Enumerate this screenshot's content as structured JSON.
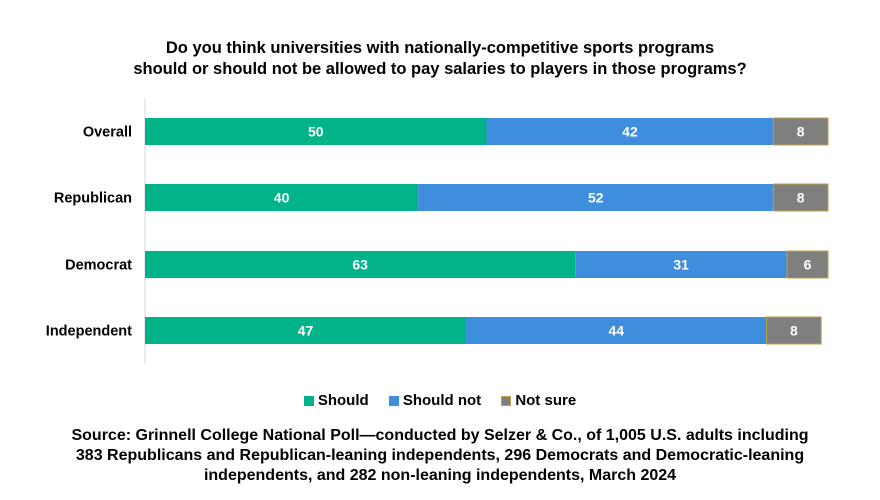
{
  "chart_data": {
    "type": "bar",
    "orientation": "horizontal-stacked",
    "title": "Do you think universities with nationally-competitive sports programs should or should not be allowed to pay salaries to players in those programs?",
    "title_lines": [
      "Do you think universities with nationally-competitive sports programs",
      "should or should not be allowed to pay salaries to players in those programs?"
    ],
    "categories": [
      "Overall",
      "Republican",
      "Democrat",
      "Independent"
    ],
    "series": [
      {
        "name": "Should",
        "values": [
          50,
          40,
          63,
          47
        ],
        "color": "#00b388"
      },
      {
        "name": "Should not",
        "values": [
          42,
          52,
          31,
          44
        ],
        "color": "#3f8ede"
      },
      {
        "name": "Not sure",
        "values": [
          8,
          8,
          6,
          8
        ],
        "color": "#7f7f7f",
        "border": "#bfa04a"
      }
    ],
    "xlim": [
      0,
      100
    ],
    "legend": "bottom",
    "grid": false,
    "source_lines": [
      "Source: Grinnell College National Poll—conducted by Selzer & Co., of 1,005 U.S. adults including",
      "383 Republicans and Republican-leaning independents, 296 Democrats and Democratic-leaning",
      "independents, and 282 non-leaning independents, March 2024"
    ]
  }
}
